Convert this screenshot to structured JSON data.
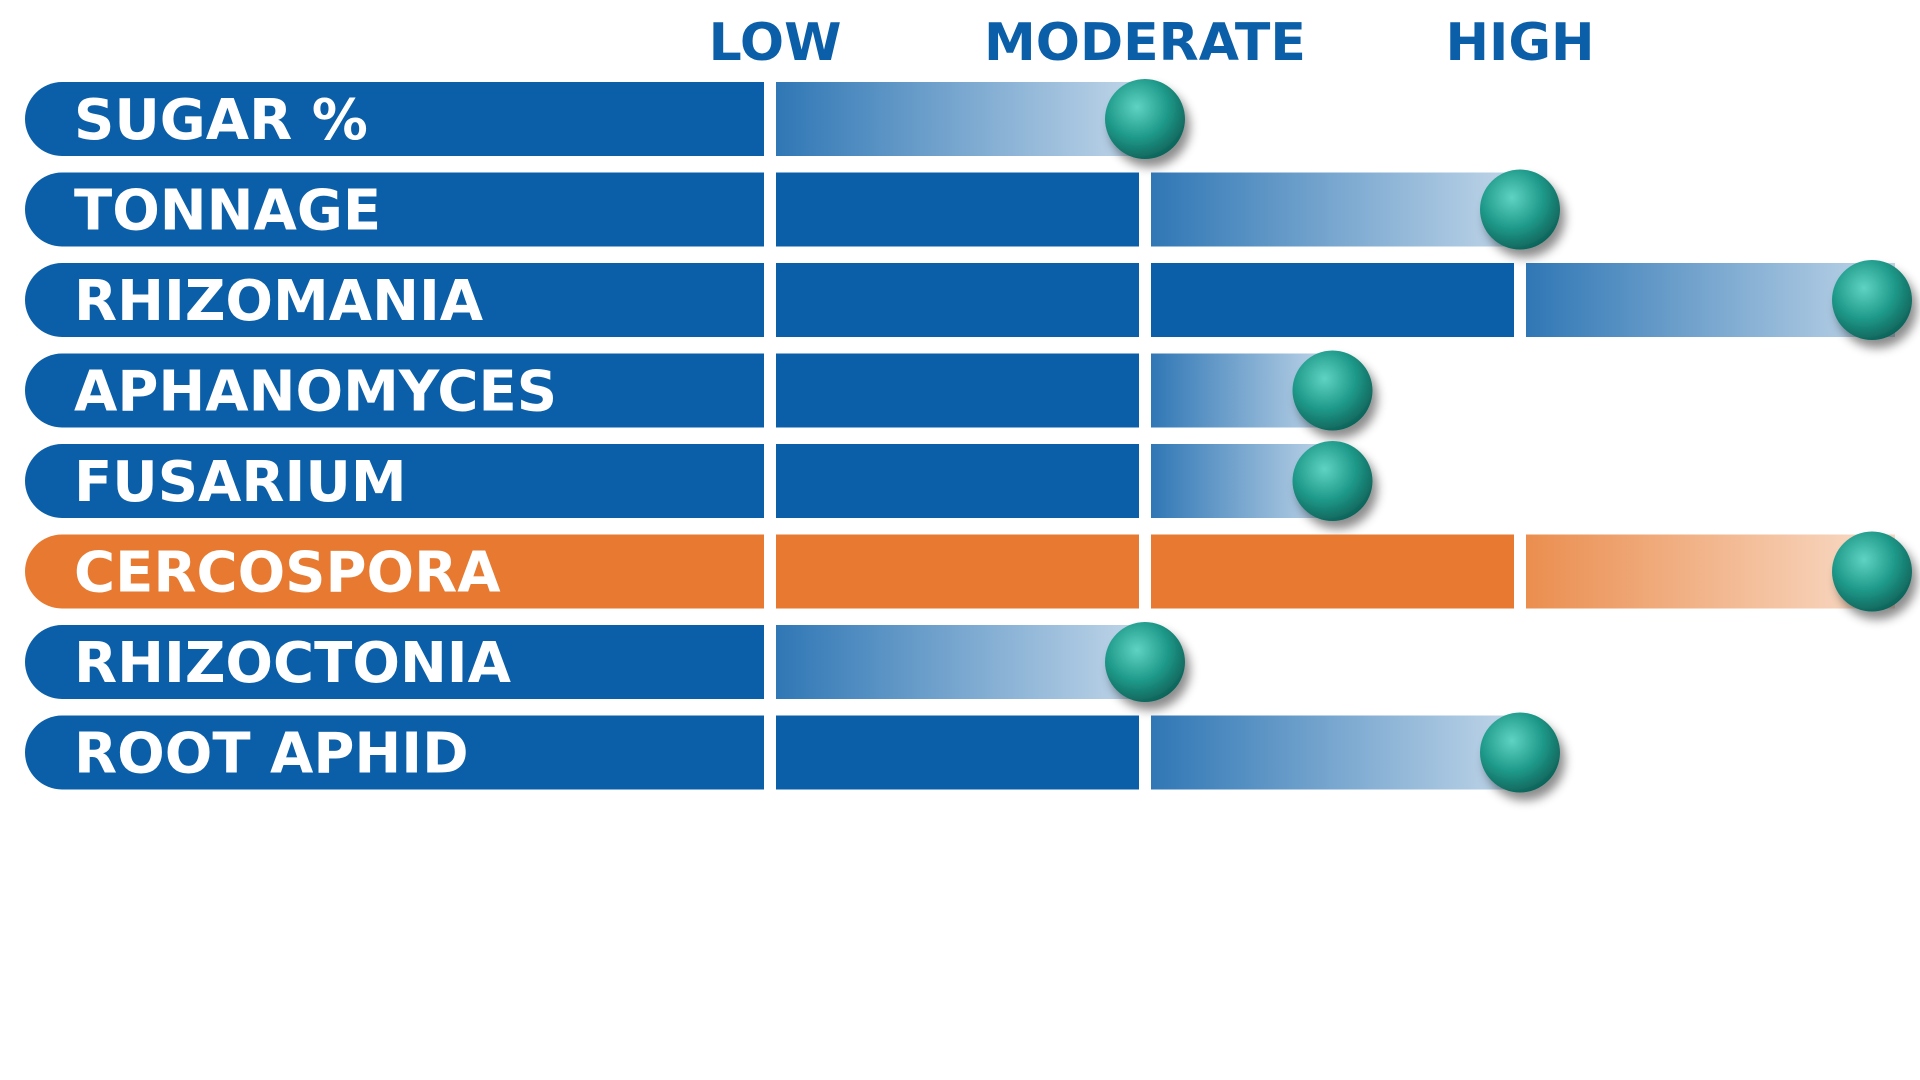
{
  "chart_data": {
    "type": "bar",
    "title": "",
    "levels": [
      "LOW",
      "MODERATE",
      "HIGH"
    ],
    "categories": [
      "SUGAR %",
      "TONNAGE",
      "RHIZOMANIA",
      "APHANOMYCES",
      "FUSARIUM",
      "CERCOSPORA",
      "RHIZOCTONIA",
      "ROOT APHID"
    ],
    "values": [
      1,
      2,
      3,
      1.5,
      1.5,
      3,
      1,
      2
    ],
    "value_scale": {
      "min": 0,
      "max": 3,
      "unit": "rating (LOW=1, MODERATE=2, HIGH=3)"
    },
    "highlight_category": "CERCOSPORA",
    "grid": false,
    "legend": "none"
  },
  "colors": {
    "bar_blue": "#0b5fa8",
    "bar_orange": "#e77a30",
    "level_label": "#0b5fa8",
    "marker": "#1f9a8a",
    "divider": "#ffffff"
  }
}
